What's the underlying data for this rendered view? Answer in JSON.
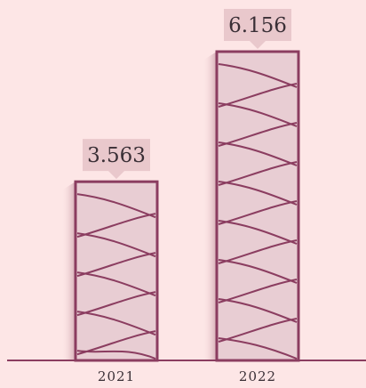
{
  "chart_data": {
    "type": "bar",
    "categories": [
      "2021",
      "2022"
    ],
    "values": [
      3563,
      6156
    ],
    "value_labels": [
      "3.563",
      "6.156"
    ],
    "title": "",
    "xlabel": "",
    "ylabel": "",
    "ylim": [
      0,
      6156
    ],
    "grid": false,
    "legend": "none"
  },
  "colors": {
    "background": "#fde6e6",
    "bar_fill": "#e8cdd3",
    "bar_stroke": "#8b3d60",
    "bar_shadow": "#d3aab3",
    "label_box": "#e9c8cc",
    "axis": "#8b3d60",
    "text": "#3a2f36"
  }
}
